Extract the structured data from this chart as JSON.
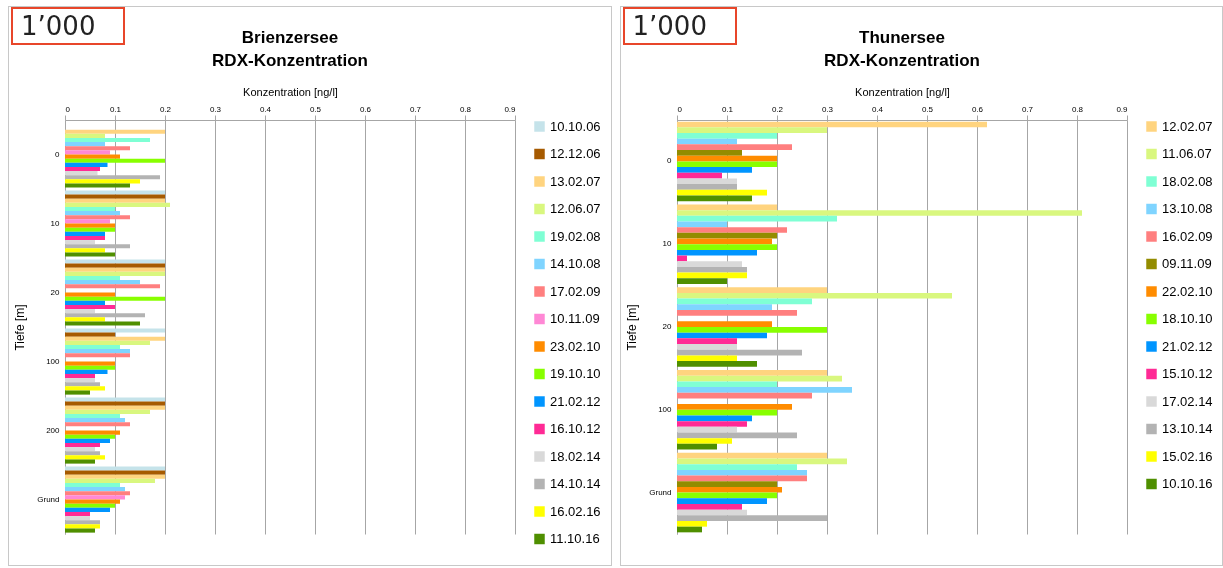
{
  "chart_data": [
    {
      "type": "bar",
      "orientation": "horizontal",
      "title": "Brienzersee",
      "subtitle": "RDX-Konzentration",
      "xlabel": "Konzentration [ng/l]",
      "ylabel": "Tiefe [m]",
      "annotations": [
        "1’000"
      ],
      "categories": [
        "0",
        "10",
        "20",
        "100",
        "200",
        "Grund"
      ],
      "xlim": [
        0,
        0.9
      ],
      "xticks": [
        0,
        0.1,
        0.2,
        0.3,
        0.4,
        0.5,
        0.6,
        0.7,
        0.8,
        0.9
      ],
      "grid": "x",
      "legend": "right",
      "series": [
        {
          "name": "10.10.06",
          "color": "#c5e3ea",
          "values": [
            null,
            0.2,
            0.2,
            0.2,
            0.2,
            0.2
          ]
        },
        {
          "name": "12.12.06",
          "color": "#a65a00",
          "values": [
            null,
            0.2,
            0.2,
            0.1,
            0.2,
            0.2
          ]
        },
        {
          "name": "13.02.07",
          "color": "#ffd47f",
          "values": [
            0.2,
            0.2,
            0.2,
            0.2,
            0.2,
            0.2
          ]
        },
        {
          "name": "12.06.07",
          "color": "#d9f77f",
          "values": [
            0.08,
            0.21,
            0.2,
            0.17,
            0.17,
            0.18
          ]
        },
        {
          "name": "19.02.08",
          "color": "#7fffd4",
          "values": [
            0.17,
            0.1,
            0.11,
            0.11,
            0.11,
            0.11
          ]
        },
        {
          "name": "14.10.08",
          "color": "#7fd4ff",
          "values": [
            0.08,
            0.11,
            0.15,
            0.13,
            0.12,
            0.12
          ]
        },
        {
          "name": "17.02.09",
          "color": "#ff7f7f",
          "values": [
            0.13,
            0.13,
            0.19,
            0.13,
            0.13,
            0.13
          ]
        },
        {
          "name": "10.11.09",
          "color": "#ff88d5",
          "values": [
            0.09,
            0.09,
            null,
            null,
            null,
            0.12
          ]
        },
        {
          "name": "23.02.10",
          "color": "#ff8c00",
          "values": [
            0.11,
            0.1,
            0.1,
            0.1,
            0.11,
            0.11
          ]
        },
        {
          "name": "19.10.10",
          "color": "#88ff00",
          "values": [
            0.2,
            0.1,
            0.2,
            0.1,
            0.1,
            0.1
          ]
        },
        {
          "name": "21.02.12",
          "color": "#0095ff",
          "values": [
            0.085,
            0.08,
            0.08,
            0.085,
            0.09,
            0.09
          ]
        },
        {
          "name": "16.10.12",
          "color": "#ff2a95",
          "values": [
            0.07,
            0.08,
            0.1,
            0.06,
            0.07,
            0.05
          ]
        },
        {
          "name": "18.02.14",
          "color": "#d9d9d9",
          "values": [
            0.065,
            0.06,
            0.06,
            0.06,
            0.06,
            0.05
          ]
        },
        {
          "name": "14.10.14",
          "color": "#b3b3b3",
          "values": [
            0.19,
            0.13,
            0.16,
            0.07,
            0.07,
            0.07
          ]
        },
        {
          "name": "16.02.16",
          "color": "#ffff00",
          "values": [
            0.15,
            0.08,
            0.08,
            0.08,
            0.08,
            0.07
          ]
        },
        {
          "name": "11.10.16",
          "color": "#4f8f00",
          "values": [
            0.13,
            0.1,
            0.15,
            0.05,
            0.06,
            0.06
          ]
        }
      ]
    },
    {
      "type": "bar",
      "orientation": "horizontal",
      "title": "Thunersee",
      "subtitle": "RDX-Konzentration",
      "xlabel": "Konzentration [ng/l]",
      "ylabel": "Tiefe [m]",
      "annotations": [
        "1’000"
      ],
      "categories": [
        "0",
        "10",
        "20",
        "100",
        "Grund"
      ],
      "xlim": [
        0,
        0.9
      ],
      "xticks": [
        0,
        0.1,
        0.2,
        0.3,
        0.4,
        0.5,
        0.6,
        0.7,
        0.8,
        0.9
      ],
      "grid": "x",
      "legend": "right",
      "series": [
        {
          "name": "12.02.07",
          "color": "#ffd47f",
          "values": [
            0.62,
            0.2,
            0.3,
            0.3,
            0.3
          ]
        },
        {
          "name": "11.06.07",
          "color": "#d9f77f",
          "values": [
            0.3,
            0.81,
            0.55,
            0.33,
            0.34
          ]
        },
        {
          "name": "18.02.08",
          "color": "#7fffd4",
          "values": [
            0.2,
            0.32,
            0.27,
            0.2,
            0.24
          ]
        },
        {
          "name": "13.10.08",
          "color": "#7fd4ff",
          "values": [
            0.12,
            0.1,
            0.19,
            0.35,
            0.26
          ]
        },
        {
          "name": "16.02.09",
          "color": "#ff7f7f",
          "values": [
            0.23,
            0.22,
            0.24,
            0.27,
            0.26
          ]
        },
        {
          "name": "09.11.09",
          "color": "#938c00",
          "values": [
            0.13,
            0.2,
            null,
            null,
            0.2
          ]
        },
        {
          "name": "22.02.10",
          "color": "#ff8c00",
          "values": [
            0.2,
            0.19,
            0.19,
            0.23,
            0.21
          ]
        },
        {
          "name": "18.10.10",
          "color": "#88ff00",
          "values": [
            0.2,
            0.2,
            0.3,
            0.2,
            0.2
          ]
        },
        {
          "name": "21.02.12",
          "color": "#0095ff",
          "values": [
            0.15,
            0.16,
            0.18,
            0.15,
            0.18
          ]
        },
        {
          "name": "15.10.12",
          "color": "#ff2a95",
          "values": [
            0.09,
            0.02,
            0.12,
            0.14,
            0.13
          ]
        },
        {
          "name": "17.02.14",
          "color": "#d9d9d9",
          "values": [
            0.12,
            0.13,
            0.12,
            0.12,
            0.14
          ]
        },
        {
          "name": "13.10.14",
          "color": "#b3b3b3",
          "values": [
            0.12,
            0.14,
            0.25,
            0.24,
            0.3
          ]
        },
        {
          "name": "15.02.16",
          "color": "#ffff00",
          "values": [
            0.18,
            0.14,
            0.12,
            0.11,
            0.06
          ]
        },
        {
          "name": "10.10.16",
          "color": "#4f8f00",
          "values": [
            0.15,
            0.1,
            0.16,
            0.08,
            0.05
          ]
        }
      ]
    }
  ]
}
